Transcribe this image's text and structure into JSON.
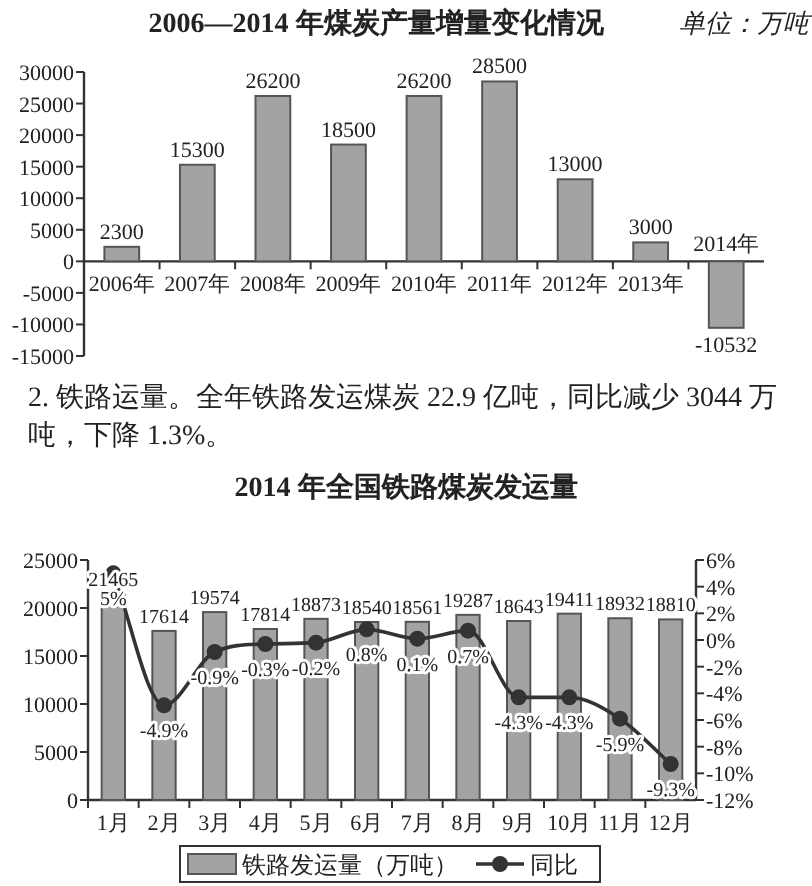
{
  "chart_data": [
    {
      "type": "bar",
      "title": "2006—2014 年煤炭产量增量变化情况",
      "subtitle": "单位：万吨",
      "categories": [
        "2006年",
        "2007年",
        "2008年",
        "2009年",
        "2010年",
        "2011年",
        "2012年",
        "2013年",
        "2014年"
      ],
      "values": [
        2300,
        15300,
        26200,
        18500,
        26200,
        28500,
        13000,
        3000,
        -10532
      ],
      "color": "#a3a3a3",
      "ylim": [
        -15000,
        30000
      ],
      "yticks": [
        -15000,
        -10000,
        -5000,
        0,
        5000,
        10000,
        15000,
        20000,
        25000,
        30000
      ],
      "data_labels": true,
      "annotations": [
        "2. 铁路运量。全年铁路发运煤炭 22.9 亿吨，同比减少 3044 万吨，下降 1.3%。"
      ]
    },
    {
      "type": "bar",
      "title": "2014 年全国铁路煤炭发运量",
      "categories": [
        "1月",
        "2月",
        "3月",
        "4月",
        "5月",
        "6月",
        "7月",
        "8月",
        "9月",
        "10月",
        "11月",
        "12月"
      ],
      "series": [
        {
          "name": "铁路发运量（万吨）",
          "type": "bar",
          "color": "#a3a3a3",
          "values": [
            21465,
            17614,
            19574,
            17814,
            18873,
            18540,
            18561,
            19287,
            18643,
            19411,
            18932,
            18810
          ],
          "value_labels": [
            "21465",
            "17614",
            "19574",
            "17814",
            "18873",
            "18540",
            "18561",
            "19287",
            "18643",
            "19411",
            "18932",
            "18810"
          ]
        },
        {
          "name": "同比",
          "type": "line",
          "axis": "y2",
          "color": "#333333",
          "values": [
            5,
            -4.9,
            -0.9,
            -0.3,
            -0.2,
            0.8,
            0.1,
            0.7,
            -4.3,
            -4.3,
            -5.9,
            -9.3
          ],
          "value_labels": [
            "5%",
            "-4.9%",
            "-0.9%",
            "-0.3%",
            "-0.2%",
            "0.8%",
            "0.1%",
            "0.7%",
            "-4.3%",
            "-4.3%",
            "-5.9%",
            "-9.3%"
          ]
        }
      ],
      "ylim": [
        0,
        25000
      ],
      "yticks": [
        0,
        5000,
        10000,
        15000,
        20000,
        25000
      ],
      "y2lim": [
        -12,
        6
      ],
      "y2ticks": [
        {
          "value": -12,
          "label": "-12%"
        },
        {
          "value": -10,
          "label": "-10%"
        },
        {
          "value": -8,
          "label": "-8%"
        },
        {
          "value": -6,
          "label": "-6%"
        },
        {
          "value": -4,
          "label": "-4%"
        },
        {
          "value": -2,
          "label": "-2%"
        },
        {
          "value": 0,
          "label": "0%"
        },
        {
          "value": 2,
          "label": "2%"
        },
        {
          "value": 4,
          "label": "4%"
        },
        {
          "value": 6,
          "label": "6%"
        }
      ],
      "marker": "circle",
      "legend": "bottom"
    }
  ]
}
